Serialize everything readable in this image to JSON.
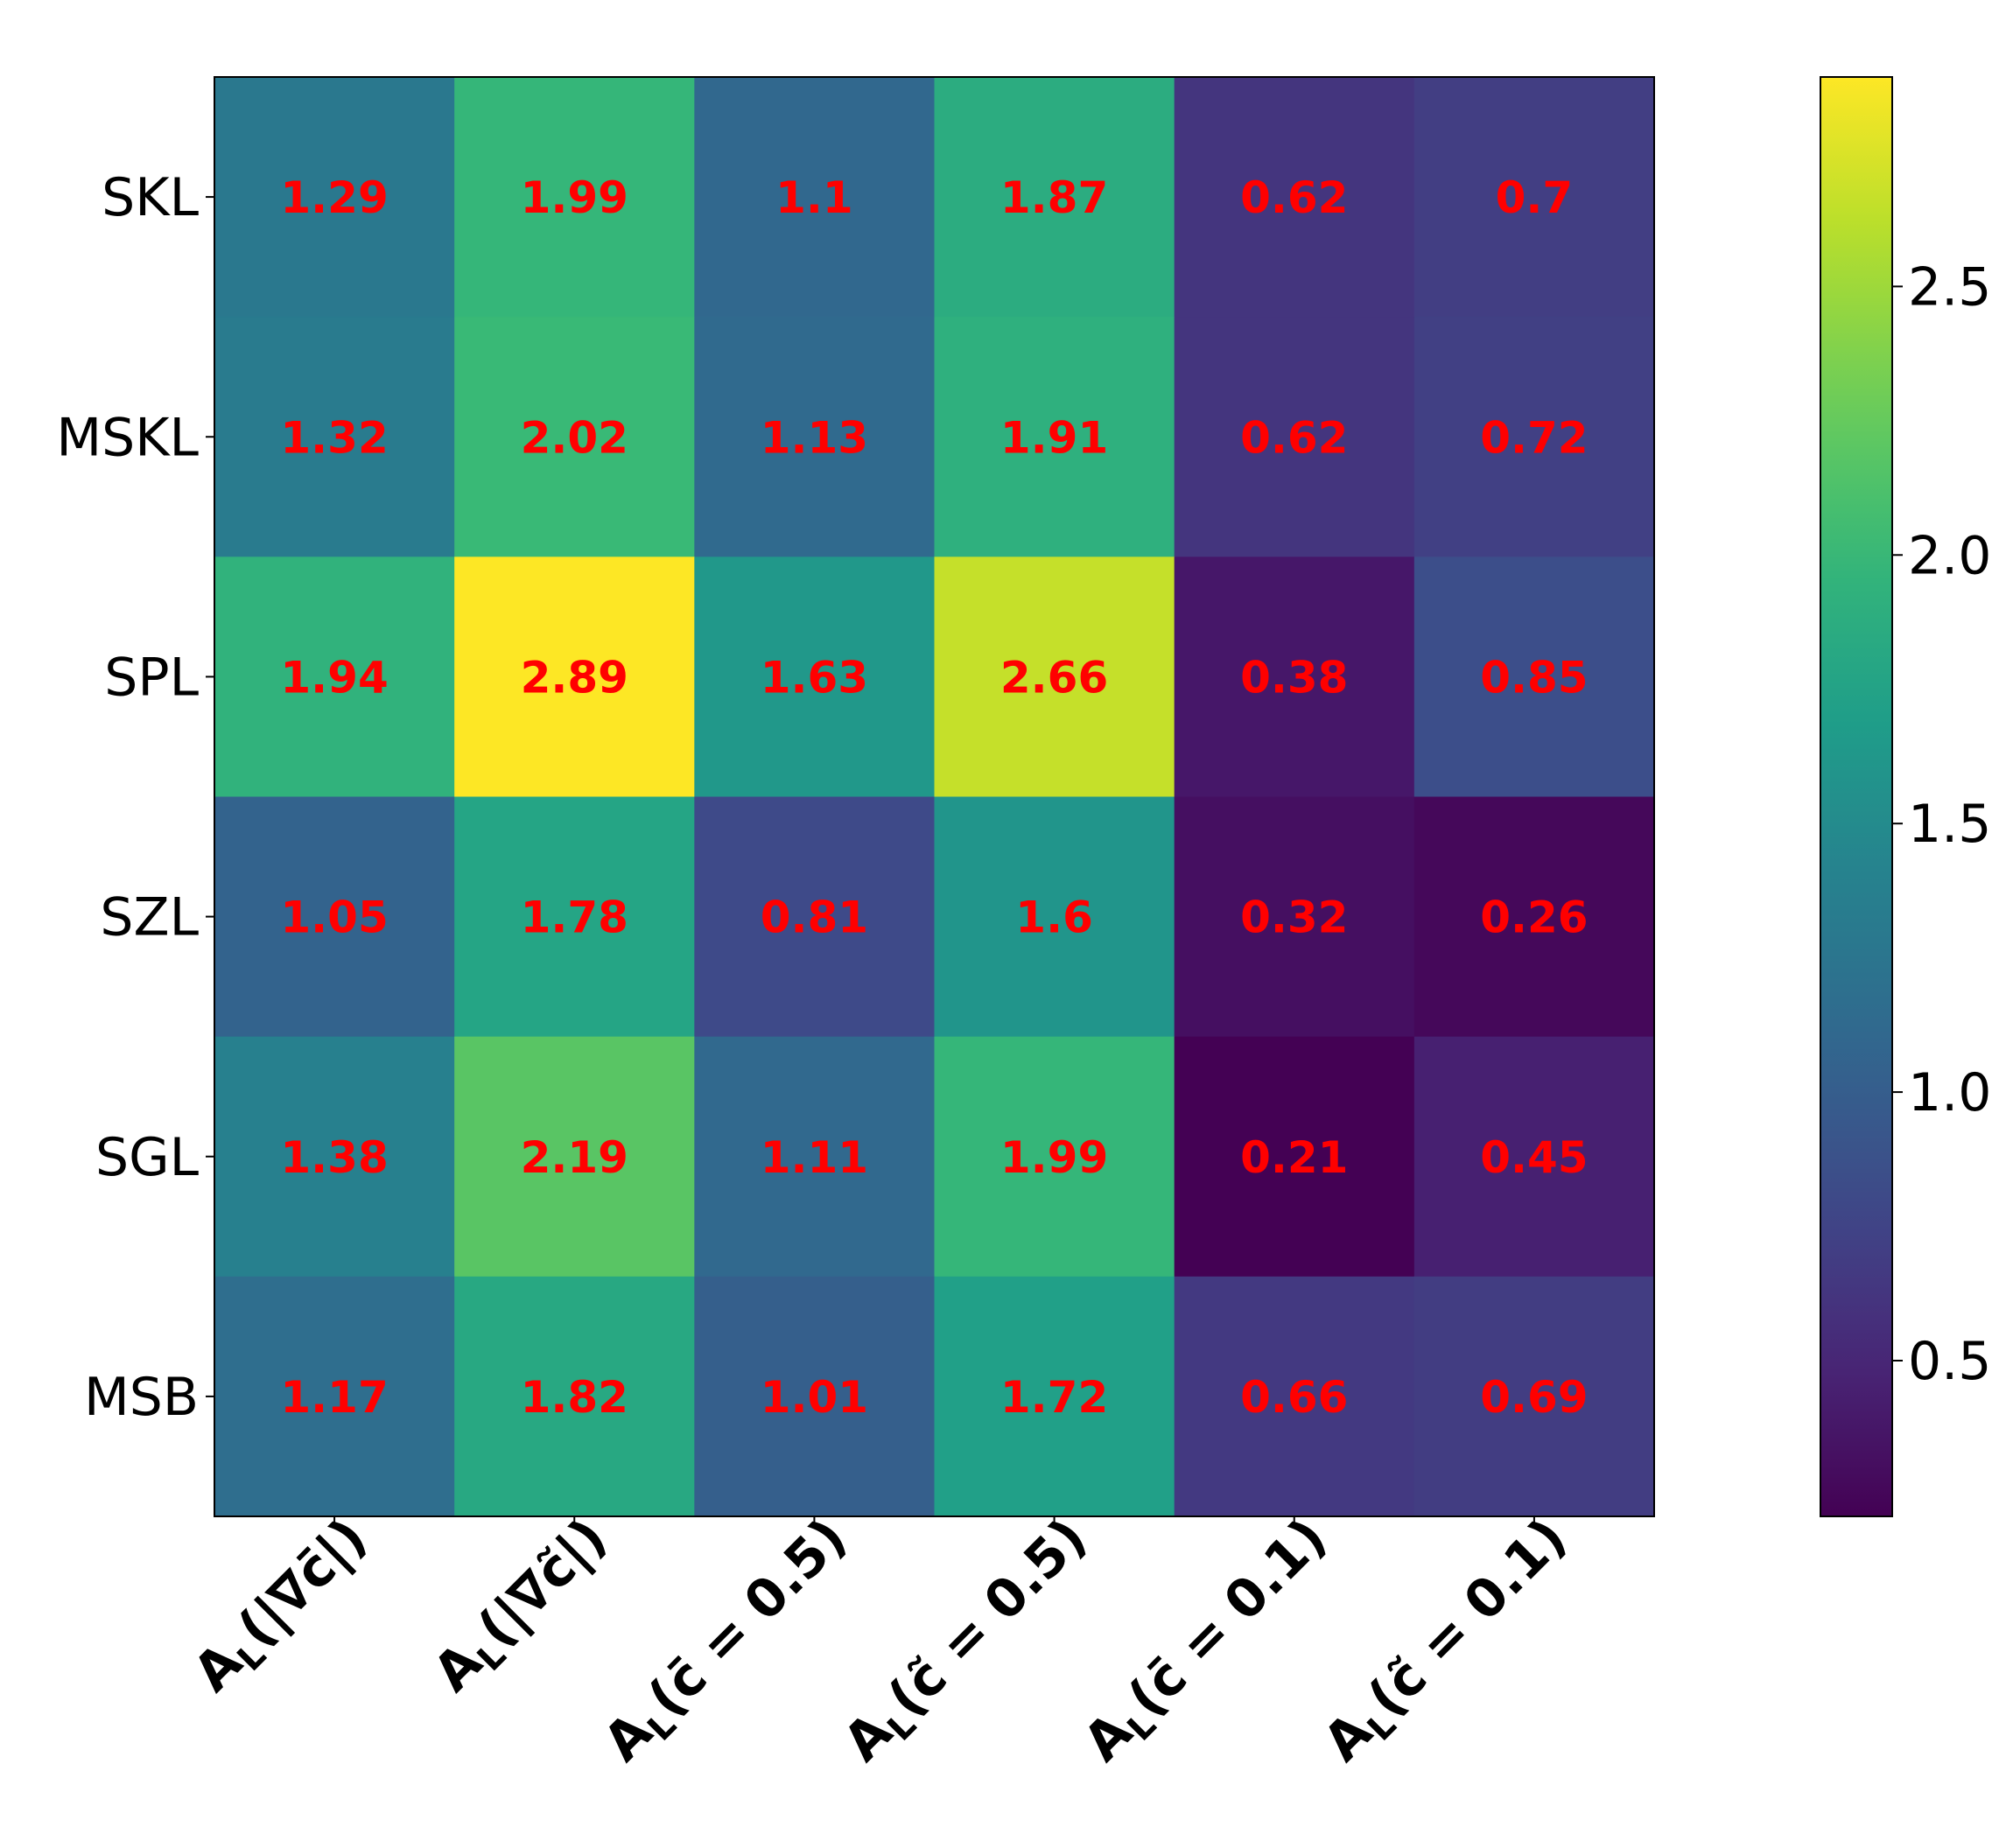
{
  "chart_data": {
    "type": "heatmap",
    "title": "",
    "rows": [
      "SKL",
      "MSKL",
      "SPL",
      "SZL",
      "SGL",
      "MSB"
    ],
    "columns": [
      {
        "base": "A",
        "sub": "L",
        "arg": "(|∇c̄|)"
      },
      {
        "base": "A",
        "sub": "L",
        "arg": "(|∇c̃|)"
      },
      {
        "base": "A",
        "sub": "L",
        "arg": "(c̄ = 0.5)"
      },
      {
        "base": "A",
        "sub": "L",
        "arg": "(c̃ = 0.5)"
      },
      {
        "base": "A",
        "sub": "L",
        "arg": "(c̄ = 0.1)"
      },
      {
        "base": "A",
        "sub": "L",
        "arg": "(c̃ = 0.1)"
      }
    ],
    "values": [
      [
        1.29,
        1.99,
        1.1,
        1.87,
        0.62,
        0.7
      ],
      [
        1.32,
        2.02,
        1.13,
        1.91,
        0.62,
        0.72
      ],
      [
        1.94,
        2.89,
        1.63,
        2.66,
        0.38,
        0.85
      ],
      [
        1.05,
        1.78,
        0.81,
        1.6,
        0.32,
        0.26
      ],
      [
        1.38,
        2.19,
        1.11,
        1.99,
        0.21,
        0.45
      ],
      [
        1.17,
        1.82,
        1.01,
        1.72,
        0.66,
        0.69
      ]
    ],
    "value_labels": [
      [
        "1.29",
        "1.99",
        "1.1",
        "1.87",
        "0.62",
        "0.7"
      ],
      [
        "1.32",
        "2.02",
        "1.13",
        "1.91",
        "0.62",
        "0.72"
      ],
      [
        "1.94",
        "2.89",
        "1.63",
        "2.66",
        "0.38",
        "0.85"
      ],
      [
        "1.05",
        "1.78",
        "0.81",
        "1.6",
        "0.32",
        "0.26"
      ],
      [
        "1.38",
        "2.19",
        "1.11",
        "1.99",
        "0.21",
        "0.45"
      ],
      [
        "1.17",
        "1.82",
        "1.01",
        "1.72",
        "0.66",
        "0.69"
      ]
    ],
    "colormap": "viridis",
    "vmin": 0.21,
    "vmax": 2.89,
    "colorbar_ticks": [
      0.5,
      1.0,
      1.5,
      2.0,
      2.5
    ],
    "colorbar_tick_labels": [
      "0.5",
      "1.0",
      "1.5",
      "2.0",
      "2.5"
    ],
    "annotation_color": "#ff0000"
  }
}
